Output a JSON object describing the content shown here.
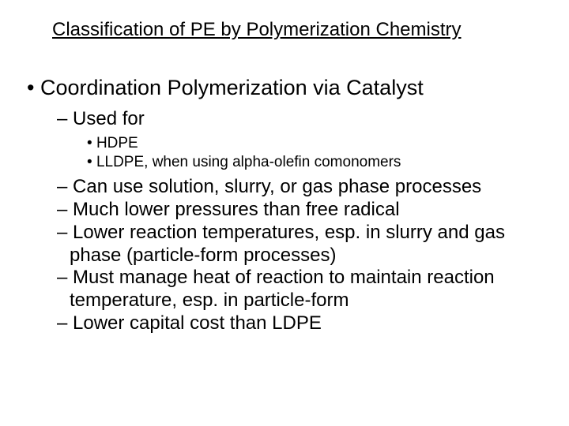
{
  "title": "Classification of PE by Polymerization Chemistry",
  "main": {
    "heading": "Coordination Polymerization via Catalyst",
    "sub1": "Used for",
    "sub1_items": {
      "a": "HDPE",
      "b": "LLDPE, when using alpha-olefin comonomers"
    },
    "points": {
      "p1": "Can use solution, slurry, or gas phase processes",
      "p2": "Much lower pressures than free radical",
      "p3": "Lower reaction temperatures, esp. in slurry and gas phase (particle-form processes)",
      "p4": "Must manage heat of reaction to maintain reaction temperature, esp. in particle-form",
      "p5": "Lower capital cost than LDPE"
    }
  },
  "style": {
    "background_color": "#ffffff",
    "text_color": "#000000",
    "title_fontsize": 24,
    "level1_fontsize": 27,
    "level2_fontsize": 24,
    "level3_fontsize": 19,
    "font_family": "Arial"
  }
}
